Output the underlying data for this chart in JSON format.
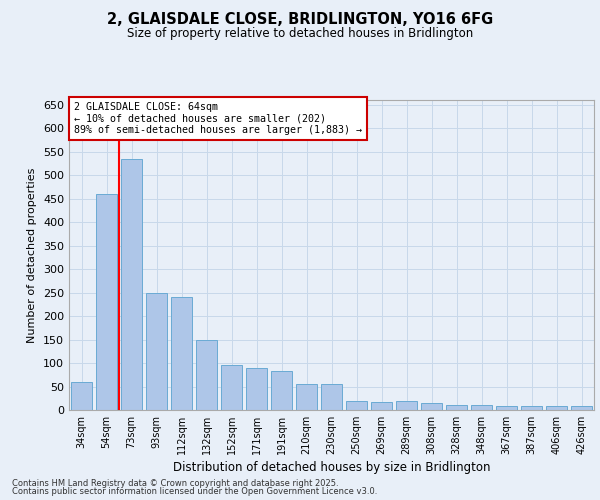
{
  "title_line1": "2, GLAISDALE CLOSE, BRIDLINGTON, YO16 6FG",
  "title_line2": "Size of property relative to detached houses in Bridlington",
  "xlabel": "Distribution of detached houses by size in Bridlington",
  "ylabel": "Number of detached properties",
  "categories": [
    "34sqm",
    "54sqm",
    "73sqm",
    "93sqm",
    "112sqm",
    "132sqm",
    "152sqm",
    "171sqm",
    "191sqm",
    "210sqm",
    "230sqm",
    "250sqm",
    "269sqm",
    "289sqm",
    "308sqm",
    "328sqm",
    "348sqm",
    "367sqm",
    "387sqm",
    "406sqm",
    "426sqm"
  ],
  "values": [
    60,
    460,
    535,
    250,
    240,
    150,
    95,
    90,
    83,
    55,
    55,
    20,
    18,
    20,
    15,
    10,
    10,
    8,
    8,
    8,
    8
  ],
  "bar_color": "#aec6e8",
  "bar_edge_color": "#6aaad4",
  "grid_color": "#c8d8ea",
  "background_color": "#e8eff8",
  "red_line_x": 1.5,
  "annotation_line1": "2 GLAISDALE CLOSE: 64sqm",
  "annotation_line2": "← 10% of detached houses are smaller (202)",
  "annotation_line3": "89% of semi-detached houses are larger (1,883) →",
  "annotation_box_color": "#ffffff",
  "annotation_box_edge": "#cc0000",
  "ylim": [
    0,
    660
  ],
  "yticks": [
    0,
    50,
    100,
    150,
    200,
    250,
    300,
    350,
    400,
    450,
    500,
    550,
    600,
    650
  ],
  "footnote1": "Contains HM Land Registry data © Crown copyright and database right 2025.",
  "footnote2": "Contains public sector information licensed under the Open Government Licence v3.0."
}
